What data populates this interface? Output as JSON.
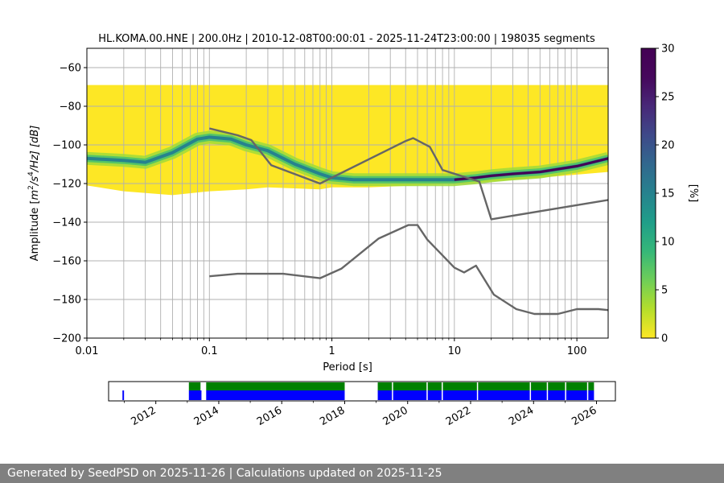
{
  "chart_data": [
    {
      "type": "heatmap",
      "title": "HL.KOMA.00.HNE | 200.0Hz | 2010-12-08T00:00:01 - 2025-11-24T23:00:00 | 198035 segments",
      "xlabel": "Period [s]",
      "ylabel_parts": [
        "Amplitude [",
        "m",
        "2",
        "/s",
        "4",
        "/Hz] [dB]"
      ],
      "x_scale": "log",
      "xlim": [
        0.01,
        180
      ],
      "ylim": [
        -200,
        -50
      ],
      "x_ticks": [
        0.01,
        0.1,
        1,
        10,
        100
      ],
      "x_tick_labels": [
        "0.01",
        "0.1",
        "1",
        "10",
        "100"
      ],
      "y_ticks": [
        -200,
        -180,
        -160,
        -140,
        -120,
        -100,
        -80,
        -60
      ],
      "y_tick_labels": [
        "−200",
        "−180",
        "−160",
        "−140",
        "−120",
        "−100",
        "−80",
        "−60"
      ],
      "grid_periods": [
        0.02,
        0.03,
        0.04,
        0.05,
        0.06,
        0.07,
        0.08,
        0.09,
        0.1,
        0.2,
        0.3,
        0.4,
        0.5,
        0.6,
        0.7,
        0.8,
        0.9,
        1,
        2,
        3,
        4,
        5,
        6,
        7,
        8,
        9,
        10,
        20,
        30,
        40,
        50,
        60,
        70,
        80,
        90,
        100
      ],
      "grid_db": [
        -180,
        -160,
        -140,
        -120,
        -100,
        -80,
        -60
      ],
      "colorbar": {
        "label": "[%]",
        "min": 0,
        "max": 30,
        "ticks": [
          0,
          5,
          10,
          15,
          20,
          25,
          30
        ],
        "tick_labels": [
          "0",
          "5",
          "10",
          "15",
          "20",
          "25",
          "30"
        ]
      },
      "density_envelope": {
        "period": [
          0.01,
          0.02,
          0.05,
          0.1,
          0.2,
          0.3,
          0.8,
          1,
          2,
          5,
          10,
          20,
          50,
          180
        ],
        "upper_db": [
          -69,
          -69,
          -69,
          -69,
          -69,
          -69,
          -69,
          -69,
          -69,
          -69,
          -69,
          -69,
          -69,
          -69
        ],
        "lower_db": [
          -121,
          -124,
          -126,
          -124,
          -123,
          -122,
          -123,
          -122,
          -122,
          -121,
          -120,
          -119,
          -117,
          -114
        ]
      },
      "mode_curve": {
        "period": [
          0.01,
          0.02,
          0.03,
          0.05,
          0.08,
          0.1,
          0.15,
          0.2,
          0.3,
          0.5,
          0.8,
          1,
          1.5,
          2,
          3,
          5,
          8,
          10,
          15,
          20,
          30,
          50,
          100,
          180
        ],
        "db": [
          -107,
          -108,
          -109,
          -104,
          -97,
          -96,
          -97,
          -100,
          -103,
          -110,
          -115,
          -117,
          -118,
          -118,
          -118,
          -118,
          -118,
          -118,
          -117,
          -116,
          -115,
          -114,
          -111,
          -107
        ]
      },
      "series": [
        {
          "name": "",
          "period": [
            0.1,
            0.17,
            0.22,
            0.32,
            0.8,
            4,
            4.6,
            6.3,
            8,
            16,
            20,
            180
          ],
          "db": [
            -91.5,
            -95,
            -97.5,
            -110.5,
            -120,
            -98,
            -96.5,
            -101,
            -113,
            -119,
            -138.5,
            -128.5
          ]
        },
        {
          "name": "",
          "period": [
            0.1,
            0.17,
            0.3,
            0.4,
            0.8,
            1.2,
            2.4,
            4.2,
            5,
            6,
            10,
            12,
            15,
            21,
            32,
            45,
            70,
            100,
            150,
            180
          ],
          "db": [
            -168,
            -166.7,
            -166.7,
            -166.7,
            -169,
            -164,
            -148.5,
            -141.5,
            -141.5,
            -149,
            -163.5,
            -166,
            -162.5,
            -177.5,
            -185,
            -187.5,
            -187.5,
            -185,
            -185,
            -185.5
          ]
        }
      ]
    },
    {
      "type": "timeline",
      "x_tick_labels": [
        "2012",
        "2014",
        "2016",
        "2018",
        "2020",
        "2022",
        "2024",
        "2026"
      ],
      "x_tick_years": [
        2012,
        2014,
        2016,
        2018,
        2020,
        2022,
        2024,
        2026
      ],
      "xlim": [
        2010.5,
        2026.6
      ],
      "colors": {
        "top": "#008000",
        "bottom": "#0000ff"
      },
      "bottom_row": [
        [
          2010.94,
          2010.99
        ],
        [
          2013.05,
          2013.45
        ],
        [
          2013.6,
          2018.0
        ],
        [
          2019.05,
          2025.92
        ]
      ],
      "top_row": [
        [
          2013.05,
          2013.42
        ],
        [
          2013.6,
          2018.0
        ],
        [
          2019.05,
          2025.92
        ]
      ],
      "gaps": [
        2019.5,
        2020.6,
        2021.08,
        2022.2,
        2023.88,
        2024.42,
        2025.0,
        2025.7
      ]
    }
  ],
  "footer": {
    "text": "Generated by SeedPSD on 2025-11-26 | Calculations updated on 2025-11-25"
  }
}
